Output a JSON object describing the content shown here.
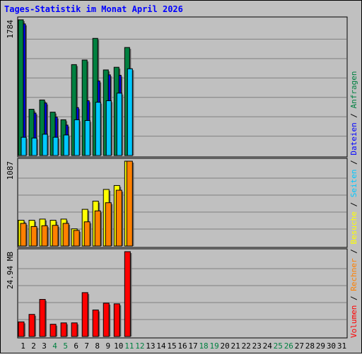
{
  "chart_data": {
    "type": "bar",
    "title": "Tages-Statistik im Monat April 2026",
    "categories": [
      "1",
      "2",
      "3",
      "4",
      "5",
      "6",
      "7",
      "8",
      "9",
      "10",
      "11",
      "12",
      "13",
      "14",
      "15",
      "16",
      "17",
      "18",
      "19",
      "20",
      "21",
      "22",
      "23",
      "24",
      "25",
      "26",
      "27",
      "28",
      "29",
      "30",
      "31"
    ],
    "weekend_days": [
      "4",
      "5",
      "11",
      "12",
      "18",
      "19",
      "25",
      "26"
    ],
    "panels": [
      {
        "id": "hits",
        "max_label": "1784",
        "ylim": [
          0,
          1784
        ],
        "series": [
          {
            "name": "Anfragen",
            "color": "#008040",
            "values": [
              1784,
              608,
              730,
              570,
              470,
              1195,
              1255,
              1540,
              1125,
              1160,
              1420,
              0,
              0,
              0,
              0,
              0,
              0,
              0,
              0,
              0,
              0,
              0,
              0,
              0,
              0,
              0,
              0,
              0,
              0,
              0,
              0
            ]
          },
          {
            "name": "Dateien",
            "color": "#0000ff",
            "values": [
              1730,
              558,
              690,
              505,
              400,
              630,
              720,
              980,
              1060,
              1055,
              1140,
              0,
              0,
              0,
              0,
              0,
              0,
              0,
              0,
              0,
              0,
              0,
              0,
              0,
              0,
              0,
              0,
              0,
              0,
              0,
              0
            ]
          },
          {
            "name": "Seiten",
            "color": "#00c8ff",
            "values": [
              240,
              230,
              280,
              240,
              270,
              470,
              460,
              700,
              720,
              820,
              1140,
              0,
              0,
              0,
              0,
              0,
              0,
              0,
              0,
              0,
              0,
              0,
              0,
              0,
              0,
              0,
              0,
              0,
              0,
              0,
              0
            ]
          }
        ]
      },
      {
        "id": "visits",
        "max_label": "1087",
        "ylim": [
          0,
          1087
        ],
        "series": [
          {
            "name": "Besuche",
            "color": "#ffff00",
            "values": [
              330,
              330,
              345,
              330,
              345,
              220,
              470,
              575,
              725,
              775,
              1087,
              0,
              0,
              0,
              0,
              0,
              0,
              0,
              0,
              0,
              0,
              0,
              0,
              0,
              0,
              0,
              0,
              0,
              0,
              0,
              0
            ]
          },
          {
            "name": "Rechner",
            "color": "#ff8000",
            "values": [
              290,
              250,
              260,
              265,
              290,
              200,
              310,
              450,
              555,
              715,
              1087,
              0,
              0,
              0,
              0,
              0,
              0,
              0,
              0,
              0,
              0,
              0,
              0,
              0,
              0,
              0,
              0,
              0,
              0,
              0,
              0
            ]
          }
        ]
      },
      {
        "id": "kbytes",
        "max_label": "24.94 MB",
        "ylim": [
          0,
          24.94
        ],
        "series": [
          {
            "name": "Volumen",
            "color": "#ff0000",
            "values": [
              4.3,
              6.5,
              10.9,
              3.6,
              4.0,
              4.0,
              12.9,
              7.8,
              9.8,
              9.6,
              24.94,
              0,
              0,
              0,
              0,
              0,
              0,
              0,
              0,
              0,
              0,
              0,
              0,
              0,
              0,
              0,
              0,
              0,
              0,
              0,
              0
            ]
          }
        ]
      }
    ],
    "legend": {
      "placement": "right-vertical",
      "separator": "/",
      "items": [
        {
          "label": "Volumen",
          "color": "#ff0000"
        },
        {
          "label": "Rechner",
          "color": "#ff8000"
        },
        {
          "label": "Besuche",
          "color": "#ffff00"
        },
        {
          "label": "Seiten",
          "color": "#00c8ff"
        },
        {
          "label": "Dateien",
          "color": "#0000ff"
        },
        {
          "label": "Anfragen",
          "color": "#008040"
        }
      ]
    },
    "grid": true,
    "background": "#c0c0c0",
    "title_color": "#0000ff",
    "weekday_color": "#000000",
    "weekend_color": "#008040"
  }
}
